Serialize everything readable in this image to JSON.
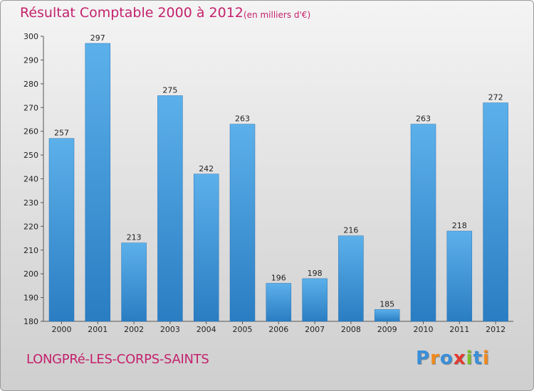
{
  "header": {
    "title": "Résultat Comptable 2000 à 2012",
    "subtitle": "(en milliers d'€)"
  },
  "footer": {
    "commune": "LONGPRé-LES-CORPS-SAINTS",
    "logo_letters": [
      "P",
      "r",
      "o",
      "x",
      "i",
      "t",
      "i"
    ],
    "logo_colors": [
      "#3a8fd8",
      "#f08a1c",
      "#3a8fd8",
      "#e23a2f",
      "#7cbf2b",
      "#3a8fd8",
      "#f08a1c"
    ]
  },
  "colors": {
    "accent": "#c4216c",
    "bar_light": "#5cb0ea",
    "bar_dark": "#2a7dc2"
  },
  "chart_data": {
    "type": "bar",
    "title": "Résultat Comptable 2000 à 2012",
    "subtitle": "(en milliers d'€)",
    "xlabel": "",
    "ylabel": "",
    "categories": [
      "2000",
      "2001",
      "2002",
      "2003",
      "2004",
      "2005",
      "2006",
      "2007",
      "2008",
      "2009",
      "2010",
      "2011",
      "2012"
    ],
    "values": [
      257,
      297,
      213,
      275,
      242,
      263,
      196,
      198,
      216,
      185,
      263,
      218,
      272
    ],
    "ylim": [
      180,
      300
    ],
    "yticks": [
      180,
      190,
      200,
      210,
      220,
      230,
      240,
      250,
      260,
      270,
      280,
      290,
      300
    ],
    "grid": false,
    "data_labels": true
  }
}
